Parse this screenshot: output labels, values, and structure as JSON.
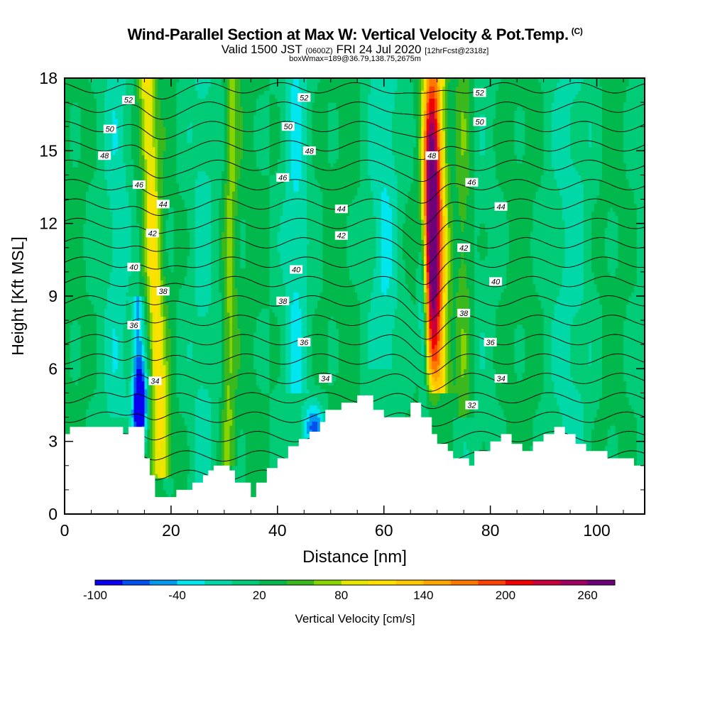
{
  "title": {
    "main": "Wind-Parallel Section at Max W: Vertical Velocity & Pot.Temp.",
    "copyright": "(C)",
    "valid_a": "Valid 1500 JST",
    "valid_utc": "(0600Z)",
    "valid_b": "FRI 24 Jul 2020",
    "fcst": "[12hrFcst@2318z]",
    "box": "boxWmax=189@36.79,138.75,2675m"
  },
  "chart_data": {
    "type": "heatmap",
    "xlabel": "Distance [nm]",
    "ylabel": "Height [Kft MSL]",
    "xlim": [
      0,
      109
    ],
    "ylim": [
      0,
      18
    ],
    "xticks": [
      0,
      20,
      40,
      60,
      80,
      100
    ],
    "yticks": [
      0,
      3,
      6,
      9,
      12,
      15,
      18
    ],
    "colorbar": {
      "title": "Vertical Velocity [cm/s]",
      "levels": [
        -100,
        -80,
        -60,
        -40,
        -20,
        0,
        20,
        40,
        60,
        80,
        100,
        120,
        140,
        160,
        180,
        200,
        220,
        240,
        260,
        280
      ],
      "colors": [
        "#0a00f0",
        "#0050f0",
        "#0099f0",
        "#00e6ef",
        "#00d8a8",
        "#00cc78",
        "#00b84c",
        "#3ab81e",
        "#88d400",
        "#e6e600",
        "#ffe100",
        "#ffc800",
        "#ffa500",
        "#ff7800",
        "#ff4000",
        "#f00000",
        "#c8003c",
        "#a00060",
        "#6e0078"
      ],
      "tick_labels": [
        -100,
        -40,
        20,
        80,
        140,
        200,
        260
      ]
    },
    "features": {
      "max_updraft": {
        "x": 69,
        "ytop": 17.8,
        "ybot": 4,
        "peak": 270
      },
      "updraft_west": {
        "x": 17,
        "ytop": 17.8,
        "ybot": 1.5,
        "peak": 80
      },
      "downdraft_west": {
        "x": 14,
        "ytop": 9,
        "ybot": 3.2,
        "min": -100
      },
      "downdraft_mid": {
        "x": 47,
        "ytop": 4.5,
        "ybot": 3.1,
        "min": -80
      }
    },
    "terrain": {
      "x": [
        0,
        1,
        1,
        11,
        11,
        12,
        12,
        15,
        15,
        16,
        16,
        17,
        17,
        21,
        21,
        24,
        24,
        26,
        26,
        27,
        27,
        28,
        28,
        31,
        31,
        32,
        32,
        35,
        35,
        36,
        36,
        38,
        38,
        40,
        40,
        42,
        42,
        44,
        44,
        46,
        46,
        48,
        48,
        49,
        49,
        52,
        52,
        55,
        55,
        58,
        58,
        60,
        60,
        65,
        65,
        67,
        67,
        69,
        69,
        70,
        70,
        72,
        72,
        73,
        73,
        76,
        76,
        77,
        77,
        80,
        80,
        82,
        82,
        84,
        84,
        86,
        86,
        88,
        88,
        90,
        90,
        92,
        92,
        94,
        94,
        96,
        96,
        98,
        98,
        102,
        102,
        107,
        107,
        109
      ],
      "y": [
        3.3,
        3.3,
        3.6,
        3.6,
        3.3,
        3.3,
        3.6,
        3.6,
        2.3,
        2.3,
        1.6,
        1.6,
        0.7,
        0.7,
        1.0,
        1.0,
        1.3,
        1.3,
        1.6,
        1.6,
        1.8,
        1.8,
        2.0,
        2.0,
        1.8,
        1.8,
        1.3,
        1.3,
        0.7,
        0.7,
        1.3,
        1.3,
        1.9,
        1.9,
        2.3,
        2.3,
        2.8,
        2.8,
        3.1,
        3.1,
        3.4,
        3.4,
        3.8,
        3.8,
        4.3,
        4.3,
        4.6,
        4.6,
        4.9,
        4.9,
        4.3,
        4.3,
        4.0,
        4.0,
        4.6,
        4.6,
        4.0,
        4.0,
        3.3,
        3.3,
        2.9,
        2.9,
        2.6,
        2.6,
        2.3,
        2.3,
        2.0,
        2.0,
        2.6,
        2.6,
        3.0,
        3.0,
        3.3,
        3.3,
        2.9,
        2.9,
        2.6,
        2.6,
        3.0,
        3.0,
        3.3,
        3.3,
        3.6,
        3.6,
        3.3,
        3.3,
        2.9,
        2.9,
        2.6,
        2.6,
        2.3,
        2.3,
        2.0,
        2.0
      ]
    },
    "contours": {
      "levels": [
        32,
        33,
        34,
        35,
        36,
        37,
        38,
        39,
        40,
        41,
        42,
        43,
        44,
        45,
        46,
        47,
        48,
        49,
        50,
        51,
        52,
        53
      ],
      "labels": [
        {
          "text": "52",
          "x": 12,
          "y": 17.1
        },
        {
          "text": "50",
          "x": 8.5,
          "y": 15.9
        },
        {
          "text": "48",
          "x": 7.5,
          "y": 14.8
        },
        {
          "text": "46",
          "x": 14,
          "y": 13.6
        },
        {
          "text": "44",
          "x": 18.5,
          "y": 12.8
        },
        {
          "text": "42",
          "x": 16.5,
          "y": 11.6
        },
        {
          "text": "40",
          "x": 13,
          "y": 10.2
        },
        {
          "text": "38",
          "x": 18.5,
          "y": 9.2
        },
        {
          "text": "36",
          "x": 13,
          "y": 7.8
        },
        {
          "text": "34",
          "x": 17,
          "y": 5.5
        },
        {
          "text": "52",
          "x": 45,
          "y": 17.2
        },
        {
          "text": "50",
          "x": 42,
          "y": 16
        },
        {
          "text": "48",
          "x": 46,
          "y": 15
        },
        {
          "text": "46",
          "x": 41,
          "y": 13.9
        },
        {
          "text": "44",
          "x": 52,
          "y": 12.6
        },
        {
          "text": "42",
          "x": 52,
          "y": 11.5
        },
        {
          "text": "40",
          "x": 43.5,
          "y": 10.1
        },
        {
          "text": "38",
          "x": 41,
          "y": 8.8
        },
        {
          "text": "36",
          "x": 45,
          "y": 7.1
        },
        {
          "text": "34",
          "x": 49,
          "y": 5.6
        },
        {
          "text": "52",
          "x": 78,
          "y": 17.4
        },
        {
          "text": "50",
          "x": 78,
          "y": 16.2
        },
        {
          "text": "48",
          "x": 69,
          "y": 14.8
        },
        {
          "text": "46",
          "x": 76.5,
          "y": 13.7
        },
        {
          "text": "44",
          "x": 82,
          "y": 12.7
        },
        {
          "text": "42",
          "x": 75,
          "y": 11
        },
        {
          "text": "40",
          "x": 81,
          "y": 9.6
        },
        {
          "text": "38",
          "x": 75,
          "y": 8.3
        },
        {
          "text": "36",
          "x": 80,
          "y": 7.1
        },
        {
          "text": "34",
          "x": 82,
          "y": 5.6
        },
        {
          "text": "32",
          "x": 76.5,
          "y": 4.5
        }
      ]
    }
  }
}
